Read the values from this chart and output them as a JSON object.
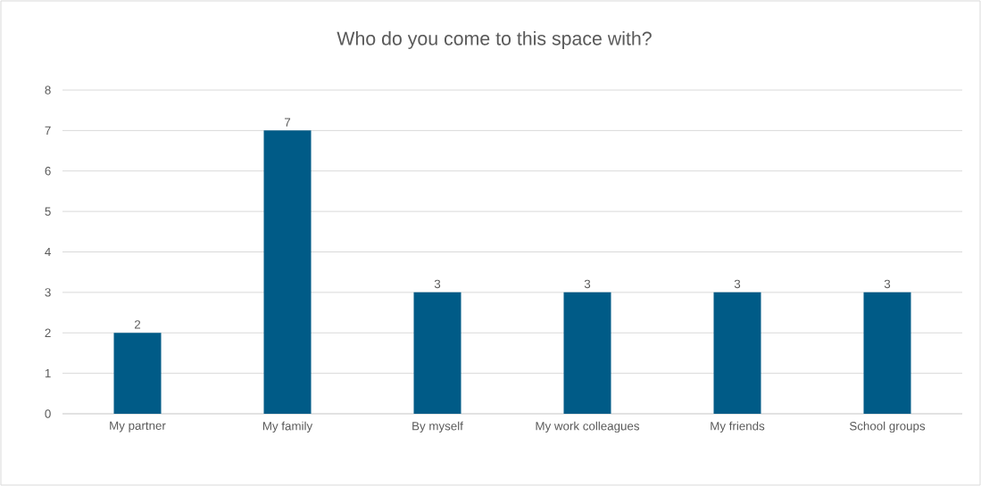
{
  "chart_data": {
    "type": "bar",
    "title": "Who do you come to this space with?",
    "categories": [
      "My partner",
      "My family",
      "By myself",
      "My work colleagues",
      "My friends",
      "School groups"
    ],
    "values": [
      2,
      7,
      3,
      3,
      3,
      3
    ],
    "color": "#005b87",
    "ylim": [
      0,
      8
    ],
    "yticks": [
      0,
      1,
      2,
      3,
      4,
      5,
      6,
      7,
      8
    ],
    "grid": "y",
    "data_labels": true
  }
}
